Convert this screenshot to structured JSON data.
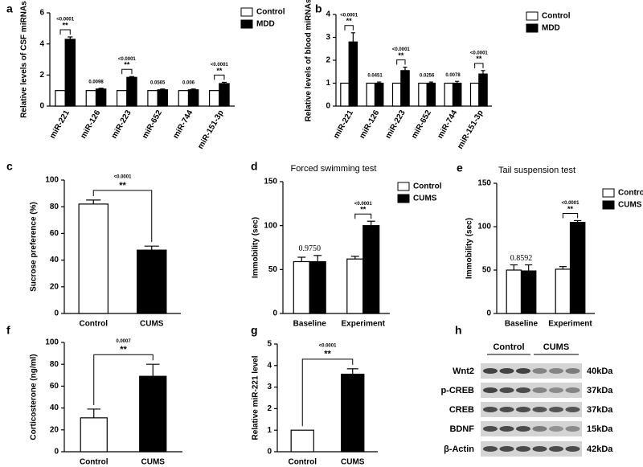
{
  "chart_data": [
    {
      "type": "bar",
      "panel": "a",
      "y_label": "Relative levels of CSF miRNAs",
      "categories": [
        "miR-221",
        "miR-126",
        "miR-223",
        "miR-652",
        "miR-744",
        "miR-151-3p"
      ],
      "series": [
        {
          "name": "Control",
          "color": "#ffffff",
          "values": [
            1,
            1,
            1,
            1,
            1,
            1
          ],
          "errors": [
            0,
            0,
            0,
            0,
            0,
            0
          ]
        },
        {
          "name": "MDD",
          "color": "#000000",
          "values": [
            4.3,
            1.1,
            1.85,
            1.05,
            1.05,
            1.45
          ],
          "errors": [
            0.15,
            0.05,
            0.05,
            0.05,
            0.05,
            0.08
          ]
        }
      ],
      "p_labels": [
        "<0.0001",
        "0.0098",
        "<0.0001",
        "0.0565",
        "0.006",
        "<0.0001"
      ],
      "stars": [
        "**",
        null,
        "**",
        null,
        null,
        "**"
      ],
      "ylim": [
        0,
        6
      ],
      "yticks": [
        0,
        2,
        4,
        6
      ]
    },
    {
      "type": "bar",
      "panel": "b",
      "y_label": "Relative levels of blood miRNAs",
      "categories": [
        "miR-221",
        "miR-126",
        "miR-223",
        "miR-652",
        "miR-744",
        "miR-151-3p"
      ],
      "series": [
        {
          "name": "Control",
          "color": "#ffffff",
          "values": [
            1,
            1,
            1,
            1,
            1,
            1
          ],
          "errors": [
            0,
            0,
            0,
            0,
            0,
            0
          ]
        },
        {
          "name": "MDD",
          "color": "#000000",
          "values": [
            2.8,
            1.0,
            1.55,
            1.0,
            1.0,
            1.4
          ],
          "errors": [
            0.4,
            0.05,
            0.15,
            0.05,
            0.08,
            0.15
          ]
        }
      ],
      "p_labels": [
        "<0.0001",
        "0.0451",
        "<0.0001",
        "0.0256",
        "0.0078",
        "<0.0001"
      ],
      "stars": [
        "**",
        null,
        "**",
        null,
        null,
        "**"
      ],
      "ylim": [
        0,
        4
      ],
      "yticks": [
        0,
        1,
        2,
        3,
        4
      ]
    },
    {
      "type": "bar",
      "panel": "c",
      "y_label": "Sucrose preference (%)",
      "categories": [
        "Control",
        "CUMS"
      ],
      "values": [
        82,
        47.5
      ],
      "errors": [
        3,
        3
      ],
      "colors": [
        "#ffffff",
        "#000000"
      ],
      "comparison": {
        "p_label": "<0.0001",
        "stars": "**"
      },
      "ylim": [
        0,
        100
      ],
      "yticks": [
        0,
        20,
        40,
        60,
        80,
        100
      ]
    },
    {
      "type": "bar",
      "panel": "d",
      "title": "Forced swimming test",
      "y_label": "Immobility (sec)",
      "categories": [
        "Baseline",
        "Experiment"
      ],
      "series": [
        {
          "name": "Control",
          "color": "#ffffff",
          "values": [
            59,
            62
          ],
          "errors": [
            5,
            3
          ]
        },
        {
          "name": "CUMS",
          "color": "#000000",
          "values": [
            59,
            100
          ],
          "errors": [
            7,
            5
          ]
        }
      ],
      "p_labels": [
        "0.9750",
        "<0.0001"
      ],
      "stars": [
        null,
        "**"
      ],
      "ylim": [
        0,
        150
      ],
      "yticks": [
        0,
        50,
        100,
        150
      ]
    },
    {
      "type": "bar",
      "panel": "e",
      "title": "Tail suspension test",
      "y_label": "Immobility (sec)",
      "categories": [
        "Baseline",
        "Experiment"
      ],
      "series": [
        {
          "name": "Control",
          "color": "#ffffff",
          "values": [
            50,
            51
          ],
          "errors": [
            6,
            3
          ]
        },
        {
          "name": "CUMS",
          "color": "#000000",
          "values": [
            49,
            105
          ],
          "errors": [
            7,
            2
          ]
        }
      ],
      "p_labels": [
        "0.8592",
        "<0.0001"
      ],
      "stars": [
        null,
        "**"
      ],
      "ylim": [
        0,
        150
      ],
      "yticks": [
        0,
        50,
        100,
        150
      ]
    },
    {
      "type": "bar",
      "panel": "f",
      "y_label": "Corticosterone (ng/ml)",
      "categories": [
        "Control",
        "CUMS"
      ],
      "values": [
        31,
        69
      ],
      "errors": [
        8,
        11
      ],
      "colors": [
        "#ffffff",
        "#000000"
      ],
      "comparison": {
        "p_label": "0.0007",
        "stars": "**"
      },
      "ylim": [
        0,
        100
      ],
      "yticks": [
        0,
        20,
        40,
        60,
        80,
        100
      ]
    },
    {
      "type": "bar",
      "panel": "g",
      "y_label": "Relative miR-221 level",
      "categories": [
        "Control",
        "CUMS"
      ],
      "values": [
        1,
        3.6
      ],
      "errors": [
        0,
        0.25
      ],
      "colors": [
        "#ffffff",
        "#000000"
      ],
      "comparison": {
        "p_label": "<0.0001",
        "stars": "**"
      },
      "ylim": [
        0,
        5
      ],
      "yticks": [
        0,
        1,
        2,
        3,
        4,
        5
      ]
    }
  ],
  "blot": {
    "panel": "h",
    "groups": [
      "Control",
      "CUMS"
    ],
    "rows": [
      {
        "protein": "Wnt2",
        "kda": "40kDa"
      },
      {
        "protein": "p-CREB",
        "kda": "37kDa"
      },
      {
        "protein": "CREB",
        "kda": "37kDa"
      },
      {
        "protein": "BDNF",
        "kda": "15kDa"
      },
      {
        "protein": "β-Actin",
        "kda": "42kDa"
      }
    ]
  }
}
